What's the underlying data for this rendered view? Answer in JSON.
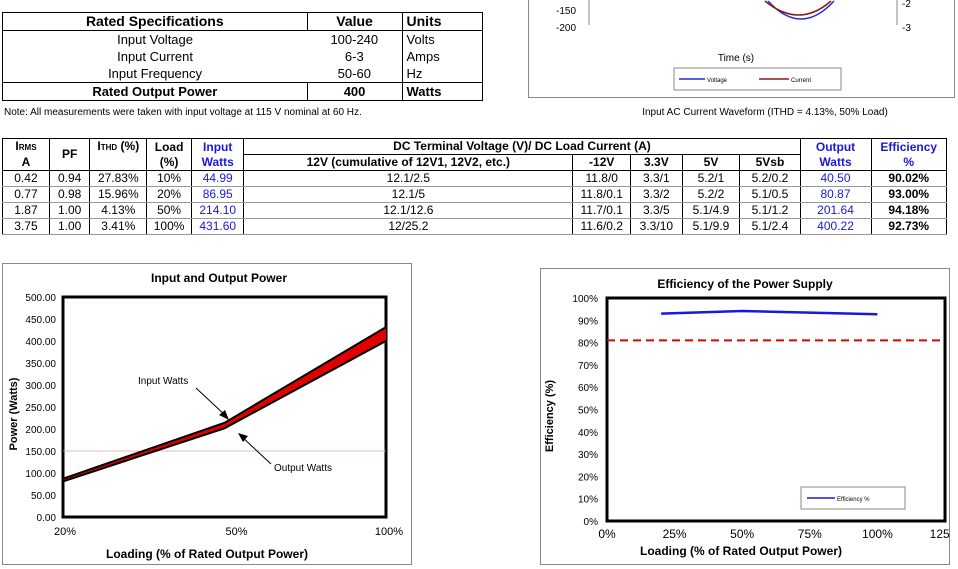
{
  "spec": {
    "headers": [
      "Rated Specifications",
      "Value",
      "Units"
    ],
    "rows": [
      [
        "Input Voltage",
        "100-240",
        "Volts"
      ],
      [
        "Input Current",
        "6-3",
        "Amps"
      ],
      [
        "Input Frequency",
        "50-60",
        "Hz"
      ],
      [
        "Rated Output Power",
        "400",
        "Watts"
      ]
    ],
    "note": "Note: All measurements were taken with input voltage at 115 V nominal at 60 Hz."
  },
  "waveform": {
    "y_ticks": [
      "-150",
      "-200"
    ],
    "right_ticks": [
      "-2",
      "-3"
    ],
    "xlabel": "Time (s)",
    "legend": [
      "Voltage",
      "Current"
    ],
    "caption": "Input AC Current Waveform (ITHD = 4.13%, 50% Load)",
    "colors": {
      "voltage": "#1a2fd6",
      "current": "#8b1a1a"
    }
  },
  "test_table": {
    "h_irms_main": "I",
    "h_irms_sub": "RMS",
    "h_irms_unit": "A",
    "h_pf": "PF",
    "h_ithd_main": "I",
    "h_ithd_sub": "THD",
    "h_ithd_unit": " (%)",
    "h_load": "Load",
    "h_load_unit": "(%)",
    "h_input": "Input",
    "h_input_unit": "Watts",
    "h_dc": "DC Terminal Voltage (V)/ DC Load Current (A)",
    "h_12v": "12V (cumulative of 12V1, 12V2, etc.)",
    "h_m12v": "-12V",
    "h_33v": "3.3V",
    "h_5v": "5V",
    "h_5vsb": "5Vsb",
    "h_output": "Output",
    "h_output_unit": "Watts",
    "h_eff": "Efficiency",
    "h_eff_unit": "%",
    "rows": [
      [
        "0.42",
        "0.94",
        "27.83%",
        "10%",
        "44.99",
        "12.1/2.5",
        "11.8/0",
        "3.3/1",
        "5.2/1",
        "5.2/0.2",
        "40.50",
        "90.02%"
      ],
      [
        "0.77",
        "0.98",
        "15.96%",
        "20%",
        "86.95",
        "12.1/5",
        "11.8/0.1",
        "3.3/2",
        "5.2/2",
        "5.1/0.5",
        "80.87",
        "93.00%"
      ],
      [
        "1.87",
        "1.00",
        "4.13%",
        "50%",
        "214.10",
        "12.1/12.6",
        "11.7/0.1",
        "3.3/5",
        "5.1/4.9",
        "5.1/1.2",
        "201.64",
        "94.18%"
      ],
      [
        "3.75",
        "1.00",
        "3.41%",
        "100%",
        "431.60",
        "12/25.2",
        "11.6/0.2",
        "3.3/10",
        "5.1/9.9",
        "5.1/2.4",
        "400.22",
        "92.73%"
      ]
    ]
  },
  "chart_data": [
    {
      "type": "area",
      "title": "Input and Output Power",
      "xlabel": "Loading (% of Rated Output Power)",
      "ylabel": "Power (Watts)",
      "x_ticks": [
        "20%",
        "50%",
        "100%"
      ],
      "y_ticks": [
        "0.00",
        "50.00",
        "100.00",
        "150.00",
        "200.00",
        "250.00",
        "300.00",
        "350.00",
        "400.00",
        "450.00",
        "500.00"
      ],
      "ylim": [
        0,
        500
      ],
      "x": [
        20,
        50,
        100
      ],
      "series": [
        {
          "name": "Input Watts",
          "values": [
            86.95,
            214.1,
            431.6
          ]
        },
        {
          "name": "Output Watts",
          "values": [
            80.87,
            201.64,
            400.22
          ]
        }
      ],
      "annotations": [
        "Input Watts",
        "Output Watts"
      ],
      "fill_color": "#e00000"
    },
    {
      "type": "line",
      "title": "Efficiency of the Power Supply",
      "xlabel": "Loading (% of Rated Output Power)",
      "ylabel": "Efficiency (%)",
      "x_ticks": [
        "0%",
        "25%",
        "50%",
        "75%",
        "100%",
        "125%"
      ],
      "y_ticks": [
        "0%",
        "10%",
        "20%",
        "30%",
        "40%",
        "50%",
        "60%",
        "70%",
        "80%",
        "90%",
        "100%"
      ],
      "xlim": [
        0,
        125
      ],
      "ylim": [
        0,
        100
      ],
      "series": [
        {
          "name": "Efficiency %",
          "x": [
            20,
            50,
            100
          ],
          "values": [
            93.0,
            94.18,
            92.73
          ],
          "color": "#1a1ad6"
        }
      ],
      "reference_line": {
        "value": 81,
        "color": "#e00000"
      },
      "legend_position": "bottom-right"
    }
  ]
}
